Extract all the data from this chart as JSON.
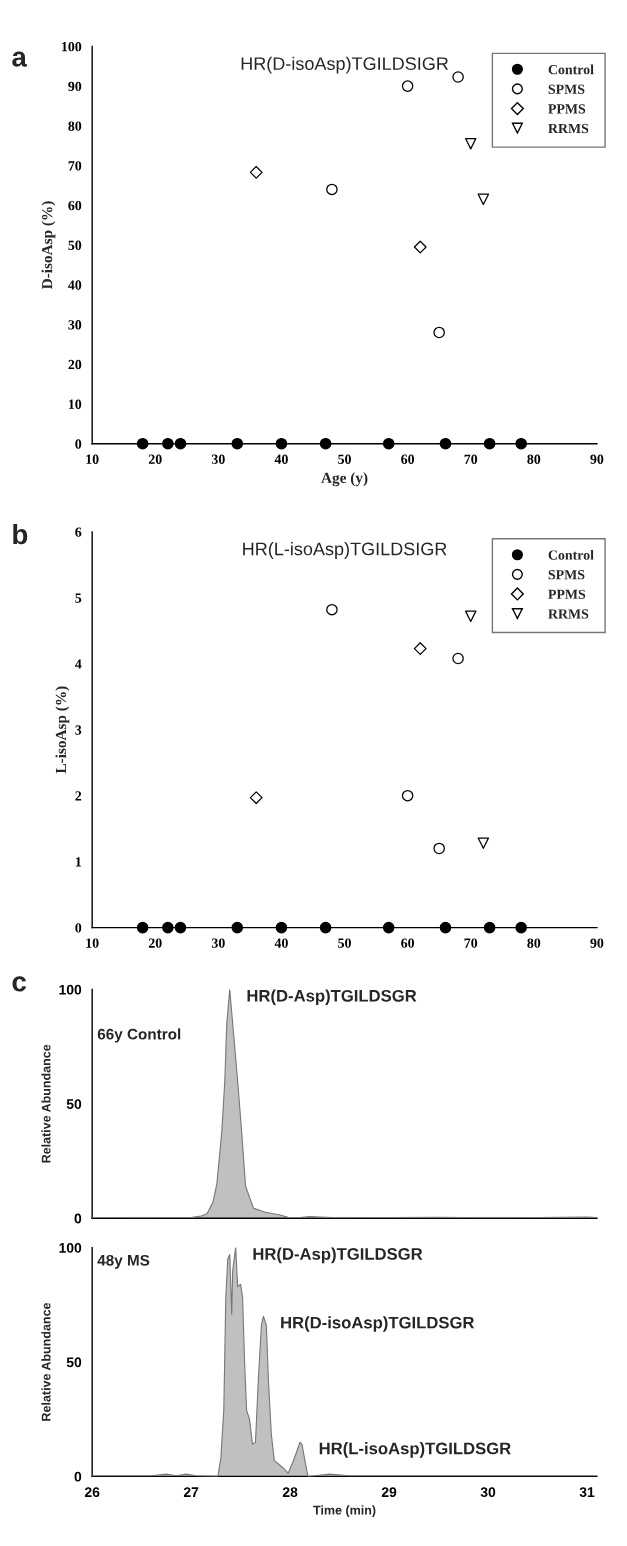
{
  "chart_data": [
    {
      "type": "scatter",
      "title": "HR(D-isoAsp)TGILDSIGR",
      "xlabel": "Age (y)",
      "ylabel": "D-isoAsp (%)",
      "xlim": [
        10,
        90
      ],
      "xticks": [
        10,
        20,
        30,
        40,
        50,
        60,
        70,
        80,
        90
      ],
      "ylim": [
        0,
        100
      ],
      "yticks": [
        0,
        10,
        20,
        30,
        40,
        50,
        60,
        70,
        80,
        90,
        100
      ],
      "grid": false,
      "legend": "top right",
      "annotations": [
        "a"
      ],
      "series": [
        {
          "name": "Control",
          "color": "#000000",
          "marker": "circle",
          "x": [
            18,
            22,
            24,
            33,
            40,
            47,
            57,
            66,
            73,
            78
          ],
          "values": [
            0,
            0,
            0,
            0,
            0,
            0,
            0,
            0,
            0,
            0
          ]
        },
        {
          "name": "SPMS",
          "color": "#ffffff",
          "marker": "circle",
          "x": [
            48,
            60,
            65,
            68
          ],
          "values": [
            64,
            90,
            28,
            92.3
          ]
        },
        {
          "name": "PPMS",
          "color": "#ffffff",
          "marker": "diamond",
          "x": [
            36,
            62
          ],
          "values": [
            68.3,
            49.5
          ]
        },
        {
          "name": "RRMS",
          "color": "#ffffff",
          "marker": "triangle",
          "x": [
            70,
            72
          ],
          "values": [
            75.5,
            61.5
          ]
        }
      ]
    },
    {
      "type": "scatter",
      "title": "HR(L-isoAsp)TGILDSIGR",
      "ylabel": "L-isoAsp (%)",
      "xlim": [
        10,
        90
      ],
      "xticks": [
        10,
        20,
        30,
        40,
        50,
        60,
        70,
        80,
        90
      ],
      "ylim": [
        0,
        6
      ],
      "yticks": [
        0,
        1,
        2,
        3,
        4,
        5,
        6
      ],
      "grid": false,
      "legend": "top right",
      "annotations": [
        "b"
      ],
      "series": [
        {
          "name": "Control",
          "color": "#000000",
          "marker": "circle",
          "x": [
            18,
            22,
            24,
            33,
            40,
            47,
            57,
            66,
            73,
            78
          ],
          "values": [
            0,
            0,
            0,
            0,
            0,
            0,
            0,
            0,
            0,
            0
          ]
        },
        {
          "name": "SPMS",
          "color": "#ffffff",
          "marker": "circle",
          "x": [
            48,
            60,
            65,
            68
          ],
          "values": [
            4.82,
            2.0,
            1.2,
            4.08
          ]
        },
        {
          "name": "PPMS",
          "color": "#ffffff",
          "marker": "diamond",
          "x": [
            36,
            62
          ],
          "values": [
            1.97,
            4.23
          ]
        },
        {
          "name": "RRMS",
          "color": "#ffffff",
          "marker": "triangle",
          "x": [
            70,
            72
          ],
          "values": [
            4.72,
            1.28
          ]
        }
      ]
    },
    {
      "type": "area",
      "ylabel": "Relative Abundance",
      "xlim": [
        26,
        31.1
      ],
      "xticks": [
        26,
        27,
        28,
        29,
        30,
        31
      ],
      "ylim": [
        0,
        100
      ],
      "yticks": [
        0,
        50,
        100
      ],
      "tick_labels": "y",
      "grid": false,
      "annotations": [
        "c",
        "66y Control",
        {
          "text": "HR(D-Asp)TGILDSGR",
          "x": 27.39,
          "y": 100
        }
      ],
      "series": [
        {
          "color": "#c0c0c0",
          "x": [
            26.0,
            26.5,
            27.0,
            27.1,
            27.16,
            27.22,
            27.26,
            27.31,
            27.34,
            27.36,
            27.39,
            27.42,
            27.47,
            27.51,
            27.55,
            27.63,
            27.75,
            27.9,
            27.98,
            28.1,
            28.2,
            28.3,
            28.5,
            29.0,
            29.5,
            30.0,
            30.5,
            31.0,
            31.1
          ],
          "values": [
            0.3,
            0.2,
            0.3,
            1,
            2,
            7,
            15,
            38,
            60,
            85,
            100,
            85,
            60,
            38,
            14,
            4.4,
            2.6,
            1.4,
            0.4,
            0.3,
            0.7,
            0.5,
            0.2,
            0.3,
            0.4,
            0.2,
            0.3,
            0.5,
            0.3
          ]
        }
      ]
    },
    {
      "type": "area",
      "xlabel": "Time (min)",
      "ylabel": "Relative Abundance",
      "xlim": [
        26,
        31.1
      ],
      "xticks": [
        26,
        27,
        28,
        29,
        30,
        31
      ],
      "ylim": [
        0,
        100
      ],
      "yticks": [
        0,
        50,
        100
      ],
      "grid": false,
      "annotations": [
        "48y MS",
        {
          "text": "HR(D-Asp)TGILDSGR",
          "x": 27.45,
          "y": 100
        },
        {
          "text": "HR(D-isoAsp)TGILDSGR",
          "x": 27.73,
          "y": 70
        },
        {
          "text": "HR(L-isoAsp)TGILDSGR",
          "x": 28.12,
          "y": 15
        }
      ],
      "series": [
        {
          "color": "#c0c0c0",
          "x": [
            26.0,
            26.6,
            26.75,
            26.85,
            26.95,
            27.05,
            27.27,
            27.3,
            27.33,
            27.35,
            27.37,
            27.39,
            27.41,
            27.42,
            27.45,
            27.47,
            27.5,
            27.52,
            27.54,
            27.56,
            27.59,
            27.62,
            27.65,
            27.68,
            27.71,
            27.73,
            27.76,
            27.78,
            27.81,
            27.84,
            27.93,
            27.98,
            28.02,
            28.06,
            28.1,
            28.12,
            28.16,
            28.18,
            28.4,
            28.6,
            29.0,
            30.0,
            31.0,
            31.1
          ],
          "values": [
            0.3,
            0.3,
            1,
            0.3,
            1,
            0.3,
            0,
            8,
            29,
            78,
            95,
            97,
            71,
            90,
            100,
            83,
            84,
            78,
            50,
            29,
            25,
            14,
            15,
            43,
            66,
            70,
            66,
            43,
            18.5,
            7,
            3.7,
            1.4,
            5.4,
            10,
            15,
            14,
            4.5,
            0,
            1,
            0.3,
            0.3,
            0.3,
            0.3,
            0.3
          ]
        }
      ]
    }
  ]
}
